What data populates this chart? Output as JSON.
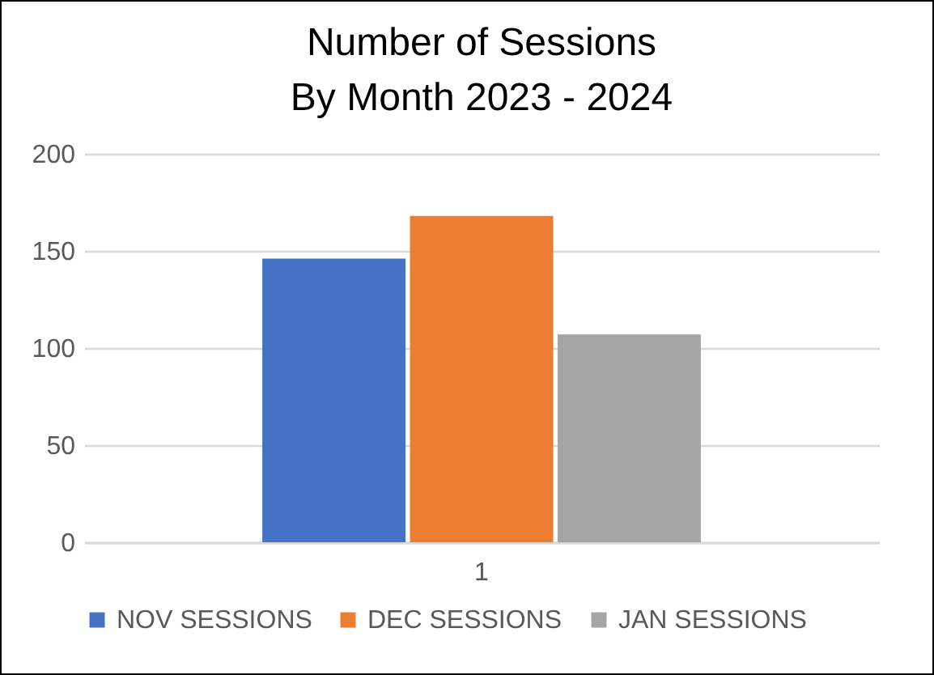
{
  "chart_data": {
    "type": "bar",
    "title": "Number of Sessions\nBy Month 2023 - 2024",
    "categories": [
      "1"
    ],
    "series": [
      {
        "name": "NOV SESSIONS",
        "color": "#4472c4",
        "values": [
          146
        ]
      },
      {
        "name": "DEC SESSIONS",
        "color": "#ed7d31",
        "values": [
          168
        ]
      },
      {
        "name": "JAN SESSIONS",
        "color": "#a5a5a5",
        "values": [
          107
        ]
      }
    ],
    "ylim": [
      0,
      200
    ],
    "yticks": [
      0,
      50,
      100,
      150,
      200
    ],
    "grid": "y",
    "legend": "bottom"
  }
}
